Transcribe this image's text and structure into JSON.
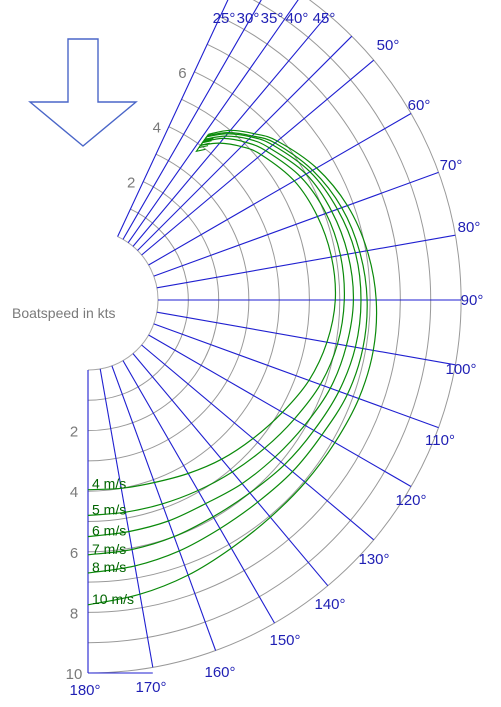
{
  "chart_data": {
    "type": "line",
    "polar": true,
    "title": "",
    "speed_axis_label": "Boatspeed in kts",
    "speed_ticks": [
      2,
      4,
      6,
      8,
      10
    ],
    "angle_ticks": [
      25,
      30,
      35,
      40,
      45,
      50,
      60,
      70,
      80,
      90,
      100,
      110,
      120,
      130,
      140,
      150,
      160,
      170,
      180
    ],
    "rlim": [
      0,
      10
    ],
    "grid": true,
    "wind_arrow": "down",
    "series": [
      {
        "name": "4 m/s",
        "angles": [
          36,
          40,
          45,
          50,
          60,
          70,
          80,
          90,
          100,
          110,
          120,
          130,
          140,
          150,
          160,
          170,
          180
        ],
        "speeds": [
          4.0,
          4.45,
          4.85,
          5.15,
          5.55,
          5.75,
          5.85,
          5.85,
          5.7,
          5.45,
          5.1,
          4.8,
          4.55,
          4.3,
          4.1,
          4.0,
          3.95
        ]
      },
      {
        "name": "5 m/s",
        "angles": [
          36,
          40,
          45,
          50,
          60,
          70,
          80,
          90,
          100,
          110,
          120,
          130,
          140,
          150,
          160,
          170,
          180
        ],
        "speeds": [
          4.15,
          4.65,
          5.05,
          5.35,
          5.8,
          6.05,
          6.15,
          6.15,
          6.05,
          5.85,
          5.55,
          5.3,
          5.1,
          4.95,
          4.85,
          4.8,
          4.8
        ]
      },
      {
        "name": "6 m/s",
        "angles": [
          36,
          40,
          45,
          50,
          60,
          70,
          80,
          90,
          100,
          110,
          120,
          130,
          140,
          150,
          160,
          170,
          180
        ],
        "speeds": [
          4.25,
          4.75,
          5.2,
          5.5,
          6.0,
          6.25,
          6.4,
          6.45,
          6.35,
          6.2,
          5.95,
          5.75,
          5.6,
          5.45,
          5.45,
          5.45,
          5.5
        ]
      },
      {
        "name": "7 m/s",
        "angles": [
          36,
          40,
          45,
          50,
          60,
          70,
          80,
          90,
          100,
          110,
          120,
          130,
          140,
          150,
          160,
          170,
          180
        ],
        "speeds": [
          4.35,
          4.85,
          5.3,
          5.65,
          6.15,
          6.45,
          6.65,
          6.7,
          6.65,
          6.5,
          6.3,
          6.15,
          6.0,
          5.95,
          6.0,
          6.05,
          6.1
        ]
      },
      {
        "name": "8 m/s",
        "angles": [
          36,
          40,
          45,
          50,
          60,
          70,
          80,
          90,
          100,
          110,
          120,
          130,
          140,
          150,
          160,
          170,
          180
        ],
        "speeds": [
          4.4,
          4.9,
          5.35,
          5.75,
          6.25,
          6.6,
          6.8,
          6.9,
          6.9,
          6.8,
          6.6,
          6.5,
          6.4,
          6.4,
          6.5,
          6.6,
          6.7
        ]
      },
      {
        "name": "10 m/s",
        "angles": [
          36,
          40,
          45,
          50,
          60,
          70,
          80,
          90,
          100,
          110,
          120,
          130,
          140,
          150,
          160,
          170,
          180
        ],
        "speeds": [
          4.45,
          5.0,
          5.45,
          5.85,
          6.4,
          6.8,
          7.05,
          7.2,
          7.25,
          7.2,
          7.1,
          7.05,
          7.05,
          7.15,
          7.35,
          7.55,
          7.75
        ]
      }
    ]
  }
}
